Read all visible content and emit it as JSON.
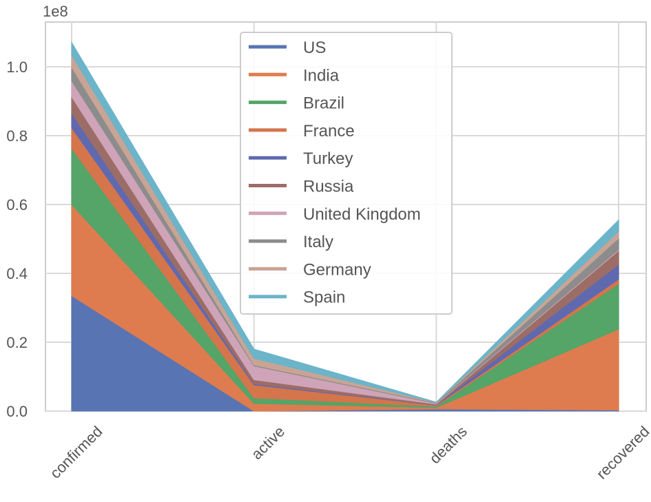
{
  "chart_data": {
    "type": "area",
    "stacked": true,
    "categories": [
      "confirmed",
      "active",
      "deaths",
      "recovered"
    ],
    "offset_label": "1e8",
    "ylim": [
      0,
      1.13
    ],
    "yticks": [
      "0.0",
      "0.2",
      "0.4",
      "0.6",
      "0.8",
      "1.0"
    ],
    "ytick_values": [
      0,
      0.2,
      0.4,
      0.6,
      0.8,
      1.0
    ],
    "grid": true,
    "legend_position": "upper-center",
    "series": [
      {
        "name": "US",
        "color": "#5874b3",
        "values": [
          0.335,
          0.0,
          0.006,
          0.003
        ]
      },
      {
        "name": "India",
        "color": "#de7c4f",
        "values": [
          0.265,
          0.022,
          0.004,
          0.235
        ]
      },
      {
        "name": "Brazil",
        "color": "#55a468",
        "values": [
          0.163,
          0.016,
          0.004,
          0.132
        ]
      },
      {
        "name": "France",
        "color": "#d4754c",
        "values": [
          0.06,
          0.038,
          0.003,
          0.013
        ]
      },
      {
        "name": "Turkey",
        "color": "#5f69b0",
        "values": [
          0.042,
          0.003,
          0.001,
          0.043
        ]
      },
      {
        "name": "Russia",
        "color": "#9c6d66",
        "values": [
          0.048,
          0.012,
          0.002,
          0.04
        ]
      },
      {
        "name": "United Kingdom",
        "color": "#cfa3b8",
        "values": [
          0.046,
          0.04,
          0.002,
          0.003
        ]
      },
      {
        "name": "Italy",
        "color": "#8c8c8c",
        "values": [
          0.04,
          0.003,
          0.002,
          0.033
        ]
      },
      {
        "name": "Germany",
        "color": "#c9a494",
        "values": [
          0.035,
          0.019,
          0.001,
          0.02
        ]
      },
      {
        "name": "Spain",
        "color": "#6cb4c9",
        "values": [
          0.037,
          0.027,
          0.001,
          0.033
        ]
      }
    ]
  }
}
